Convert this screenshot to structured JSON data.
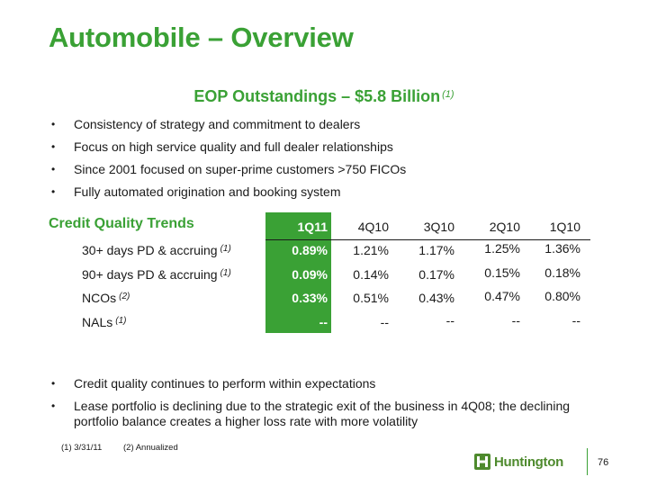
{
  "title": "Automobile – Overview",
  "subtitle": {
    "text": "EOP Outstandings – $5.8 Billion",
    "footnote_ref": "(1)"
  },
  "top_bullets": [
    "Consistency of strategy and commitment to dealers",
    "Focus on high service quality and full dealer relationships",
    "Since 2001 focused on super-prime customers >750 FICOs",
    "Fully automated origination and booking system"
  ],
  "credit_quality": {
    "heading": "Credit Quality Trends",
    "columns": [
      "1Q11",
      "4Q10",
      "3Q10",
      "2Q10",
      "1Q10"
    ],
    "rows": [
      {
        "label": "30+ days PD & accruing",
        "ref": "(1)",
        "values": [
          "0.89%",
          "1.21%",
          "1.17%",
          "1.25%",
          "1.36%"
        ]
      },
      {
        "label": "90+ days PD & accruing",
        "ref": "(1)",
        "values": [
          "0.09%",
          "0.14%",
          "0.17%",
          "0.15%",
          "0.18%"
        ]
      },
      {
        "label": "NCOs",
        "ref": "(2)",
        "values": [
          "0.33%",
          "0.51%",
          "0.43%",
          "0.47%",
          "0.80%"
        ]
      },
      {
        "label": "NALs",
        "ref": "(1)",
        "values": [
          "--",
          "--",
          "--",
          "--",
          "--"
        ]
      }
    ]
  },
  "bottom_bullets": [
    "Credit quality continues to perform within expectations",
    "Lease portfolio is declining due to the strategic exit of the business in 4Q08;  the declining portfolio balance creates a higher loss rate with more volatility"
  ],
  "footnotes": [
    "(1)  3/31/11",
    "(2) Annualized"
  ],
  "logo": {
    "text": "Huntington",
    "color": "#4e8a2d"
  },
  "page_number": "76",
  "colors": {
    "accent": "#3aa135"
  }
}
